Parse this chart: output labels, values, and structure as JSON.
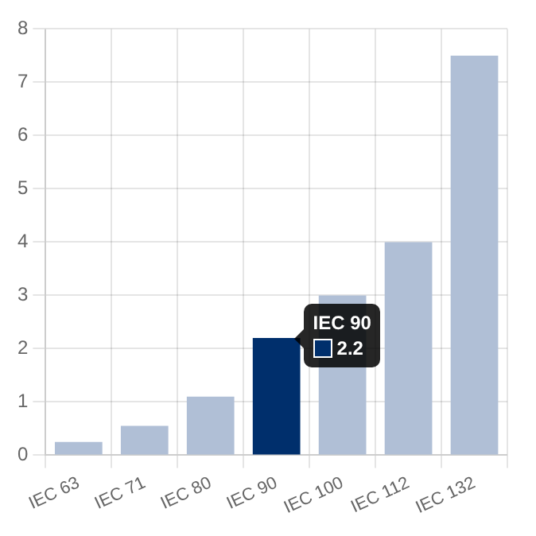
{
  "chart_data": {
    "type": "bar",
    "categories": [
      "IEC 63",
      "IEC 71",
      "IEC 80",
      "IEC 90",
      "IEC 100",
      "IEC 112",
      "IEC 132"
    ],
    "values": [
      0.25,
      0.55,
      1.1,
      2.2,
      3.0,
      4.0,
      7.5
    ],
    "colors": [
      "#b0bfd6",
      "#b0bfd6",
      "#b0bfd6",
      "#002f6c",
      "#b0bfd6",
      "#b0bfd6",
      "#b0bfd6"
    ],
    "annotations": [
      {
        "text": "IEC 90",
        "x": "IEC 90",
        "y": 2.2
      },
      "2.2"
    ],
    "ylim": [
      0,
      8
    ],
    "yticks": [
      0,
      1,
      2,
      3,
      4,
      5,
      6,
      7,
      8
    ],
    "grid": true,
    "legend": false
  }
}
